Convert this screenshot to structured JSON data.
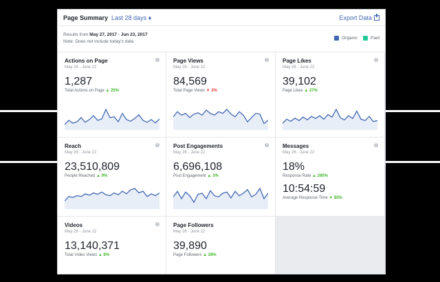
{
  "header": {
    "title": "Page Summary",
    "range": "Last 28 days ♦",
    "export": "Export Data"
  },
  "results": {
    "prefix": "Results from ",
    "dates": "May 27, 2017 · Jun 23, 2017",
    "note": "Note: Does not include today's data"
  },
  "legend": {
    "organic": "Organic",
    "paid": "Paid",
    "organic_color": "#4267b2",
    "paid_color": "#20c997"
  },
  "cards": [
    {
      "title": "Actions on Page",
      "date": "May 26 - June 22",
      "value": "1,287",
      "label": "Total Actions on Page",
      "change": "▲ 25%",
      "trend": [
        30,
        45,
        35,
        40,
        55,
        38,
        48,
        62,
        45,
        50,
        85,
        55,
        58,
        40,
        70,
        48,
        42,
        52,
        65,
        45,
        38,
        48,
        36,
        50
      ]
    },
    {
      "title": "Page Views",
      "date": "May 26 - June 22",
      "value": "84,569",
      "label": "Total Page Views",
      "change": "▼ 3%",
      "trend": [
        40,
        55,
        45,
        50,
        38,
        48,
        52,
        45,
        60,
        50,
        45,
        55,
        50,
        62,
        48,
        40,
        55,
        45,
        25,
        38,
        50,
        48,
        20,
        30
      ]
    },
    {
      "title": "Page Likes",
      "date": "May 26 - June 22",
      "value": "39,102",
      "label": "Page Likes",
      "change": "▲ 27%",
      "trend": [
        30,
        42,
        36,
        45,
        38,
        48,
        40,
        50,
        44,
        52,
        42,
        55,
        48,
        70,
        46,
        40,
        52,
        44,
        65,
        42,
        38,
        50,
        35,
        38
      ]
    },
    {
      "title": "Reach",
      "date": "May 26 - June 22",
      "value": "23,510,809",
      "label": "People Reached",
      "change": "▲ 9%",
      "trend": [
        30,
        40,
        38,
        42,
        40,
        46,
        43,
        48,
        45,
        50,
        44,
        42,
        48,
        44,
        52,
        46,
        55,
        58,
        48,
        52,
        40,
        46,
        42,
        48
      ]
    },
    {
      "title": "Post Engagements",
      "date": "May 26 - June 22",
      "value": "6,696,108",
      "label": "Post Engagement",
      "change": "▲ 3%",
      "trend": [
        45,
        60,
        40,
        58,
        48,
        30,
        52,
        55,
        40,
        62,
        48,
        45,
        55,
        58,
        42,
        60,
        48,
        55,
        65,
        45,
        52,
        68,
        40,
        55
      ]
    },
    {
      "title": "Videos",
      "date": "May 26 - June 22",
      "value": "13,140,371",
      "label": "Total Video Views",
      "change": "▲ 8%"
    },
    {
      "title": "Page Followers",
      "date": "May 26 - June 22",
      "value": "39,890",
      "label": "Page Followers",
      "change": "▲ 28%"
    }
  ],
  "messages": {
    "title": "Messages",
    "date": "May 26 - June 22",
    "rate": "18%",
    "rate_label": "Response Rate",
    "rate_change": "▲ 260%",
    "time": "10:54:59",
    "time_label": "Average Response Time",
    "time_change": "▼ 85%"
  }
}
